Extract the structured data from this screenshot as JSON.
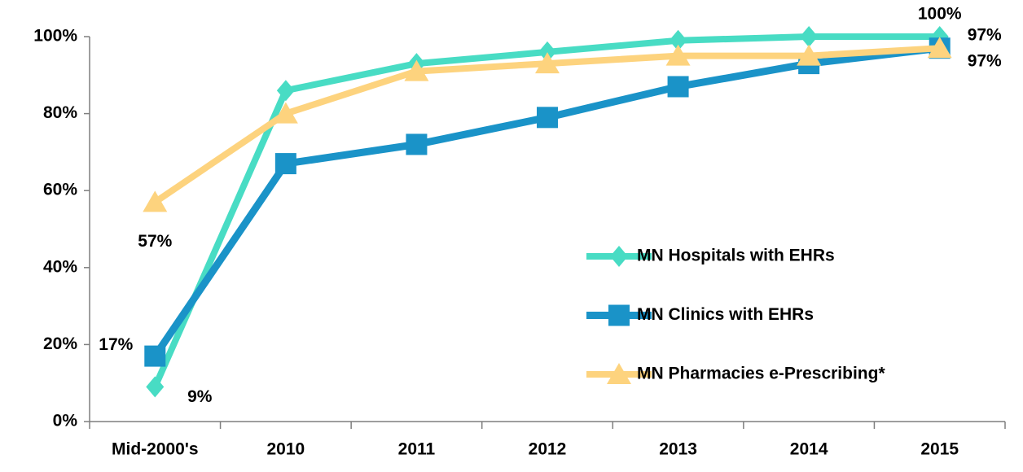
{
  "chart_data": {
    "type": "line",
    "categories": [
      "Mid-2000's",
      "2010",
      "2011",
      "2012",
      "2013",
      "2014",
      "2015"
    ],
    "series": [
      {
        "name": "MN Hospitals with EHRs",
        "color": "#48DCC4",
        "marker": "diamond",
        "values": [
          9,
          86,
          93,
          96,
          99,
          100,
          100
        ],
        "value_labels": [
          "9%",
          null,
          null,
          null,
          null,
          null,
          "100%"
        ]
      },
      {
        "name": "MN Clinics with EHRs",
        "color": "#1A93C8",
        "marker": "square",
        "values": [
          17,
          67,
          72,
          79,
          87,
          93,
          97
        ],
        "value_labels": [
          "17%",
          null,
          null,
          null,
          null,
          null,
          "97%"
        ]
      },
      {
        "name": "MN Pharmacies e-Prescribing*",
        "color": "#FDD37E",
        "marker": "triangle",
        "values": [
          57,
          80,
          91,
          93,
          95,
          95,
          97
        ],
        "value_labels": [
          "57%",
          null,
          null,
          null,
          null,
          null,
          "97%"
        ]
      }
    ],
    "ylim": [
      0,
      100
    ],
    "yticks": [
      {
        "value": 0,
        "label": "0%"
      },
      {
        "value": 20,
        "label": "20%"
      },
      {
        "value": 40,
        "label": "40%"
      },
      {
        "value": 60,
        "label": "60%"
      },
      {
        "value": 80,
        "label": "80%"
      },
      {
        "value": 100,
        "label": "100%"
      }
    ],
    "grid": false
  }
}
